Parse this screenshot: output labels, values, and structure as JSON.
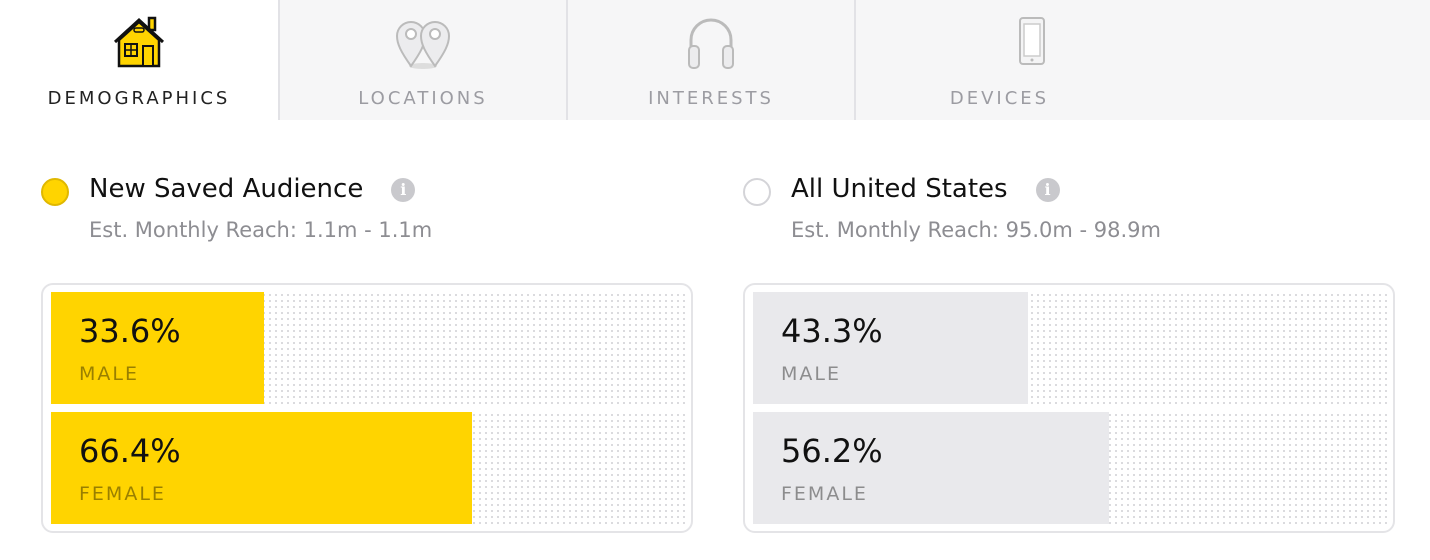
{
  "tabs": [
    {
      "label": "DEMOGRAPHICS",
      "active": true
    },
    {
      "label": "LOCATIONS",
      "active": false
    },
    {
      "label": "INTERESTS",
      "active": false
    },
    {
      "label": "DEVICES",
      "active": false
    }
  ],
  "audiences": [
    {
      "name": "New Saved Audience",
      "reach": "Est. Monthly Reach: 1.1m - 1.1m",
      "selected": true,
      "color": "#ffd400",
      "bars": [
        {
          "value": 33.6,
          "label": "33.6%",
          "name": "MALE"
        },
        {
          "value": 66.4,
          "label": "66.4%",
          "name": "FEMALE"
        }
      ]
    },
    {
      "name": "All United States",
      "reach": "Est. Monthly Reach: 95.0m - 98.9m",
      "selected": false,
      "color": "#e9e9ec",
      "bars": [
        {
          "value": 43.3,
          "label": "43.3%",
          "name": "MALE"
        },
        {
          "value": 56.2,
          "label": "56.2%",
          "name": "FEMALE"
        }
      ]
    }
  ]
}
